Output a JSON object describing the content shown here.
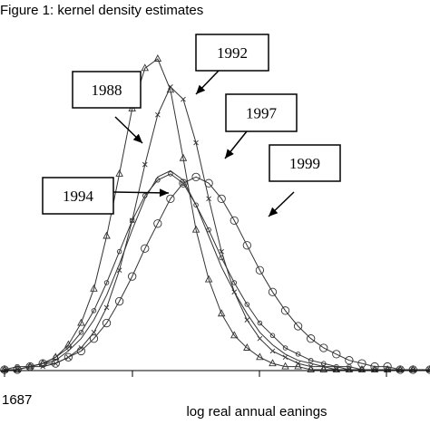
{
  "chart_data": {
    "type": "line",
    "title": "Figure 1: kernel density estimates",
    "xlabel": "log real annual eanings",
    "ylabel": "",
    "x_tick_label_first": "1687",
    "grid": false,
    "legend": "callout boxes with arrows",
    "series": [
      {
        "name": "1988",
        "marker": "triangle",
        "x": [
          0.0,
          0.03,
          0.06,
          0.09,
          0.12,
          0.15,
          0.18,
          0.21,
          0.24,
          0.27,
          0.3,
          0.33,
          0.36,
          0.39,
          0.42,
          0.45,
          0.48,
          0.51,
          0.54,
          0.57,
          0.6,
          0.63,
          0.66,
          0.69,
          0.72,
          0.75,
          0.78,
          0.81,
          0.84,
          0.87,
          0.9,
          0.93,
          0.96,
          1.0
        ],
        "y": [
          0.0,
          0.0,
          0.01,
          0.02,
          0.04,
          0.08,
          0.15,
          0.26,
          0.43,
          0.63,
          0.84,
          0.97,
          1.0,
          0.9,
          0.68,
          0.45,
          0.29,
          0.18,
          0.11,
          0.07,
          0.04,
          0.02,
          0.01,
          0.01,
          0.0,
          0.0,
          0.0,
          0.0,
          0.0,
          0.0,
          0.0,
          0.0,
          0.0,
          0.0
        ]
      },
      {
        "name": "1992",
        "marker": "x",
        "x": [
          0.0,
          0.03,
          0.06,
          0.09,
          0.12,
          0.15,
          0.18,
          0.21,
          0.24,
          0.27,
          0.3,
          0.33,
          0.36,
          0.39,
          0.42,
          0.45,
          0.48,
          0.51,
          0.54,
          0.57,
          0.6,
          0.63,
          0.66,
          0.69,
          0.72,
          0.75,
          0.78,
          0.81,
          0.84,
          0.87,
          0.9,
          0.93,
          0.96,
          1.0
        ],
        "y": [
          0.0,
          0.0,
          0.01,
          0.01,
          0.02,
          0.04,
          0.07,
          0.12,
          0.2,
          0.32,
          0.48,
          0.66,
          0.82,
          0.91,
          0.87,
          0.73,
          0.55,
          0.38,
          0.25,
          0.16,
          0.1,
          0.06,
          0.04,
          0.02,
          0.01,
          0.01,
          0.0,
          0.0,
          0.0,
          0.0,
          0.0,
          0.0,
          0.0,
          0.0
        ]
      },
      {
        "name": "1997",
        "marker": "circle-small",
        "x": [
          0.0,
          0.03,
          0.06,
          0.09,
          0.12,
          0.15,
          0.18,
          0.21,
          0.24,
          0.27,
          0.3,
          0.33,
          0.36,
          0.39,
          0.42,
          0.45,
          0.48,
          0.51,
          0.54,
          0.57,
          0.6,
          0.63,
          0.66,
          0.69,
          0.72,
          0.75,
          0.78,
          0.81,
          0.84,
          0.87,
          0.9,
          0.93,
          0.96,
          1.0
        ],
        "y": [
          0.0,
          0.01,
          0.01,
          0.02,
          0.04,
          0.07,
          0.12,
          0.19,
          0.28,
          0.38,
          0.48,
          0.56,
          0.61,
          0.63,
          0.6,
          0.53,
          0.45,
          0.36,
          0.28,
          0.21,
          0.15,
          0.11,
          0.07,
          0.05,
          0.03,
          0.02,
          0.01,
          0.01,
          0.0,
          0.0,
          0.0,
          0.0,
          0.0,
          0.0
        ]
      },
      {
        "name": "1994",
        "marker": "line",
        "x": [
          0.0,
          0.03,
          0.06,
          0.09,
          0.12,
          0.15,
          0.18,
          0.21,
          0.24,
          0.27,
          0.3,
          0.33,
          0.36,
          0.39,
          0.42,
          0.45,
          0.48,
          0.51,
          0.54,
          0.57,
          0.6,
          0.63,
          0.66,
          0.69,
          0.72,
          0.75,
          0.78,
          0.81,
          0.84,
          0.87,
          0.9,
          0.93,
          0.96,
          1.0
        ],
        "y": [
          0.0,
          0.0,
          0.01,
          0.02,
          0.03,
          0.06,
          0.1,
          0.16,
          0.24,
          0.34,
          0.45,
          0.55,
          0.62,
          0.64,
          0.61,
          0.53,
          0.43,
          0.33,
          0.25,
          0.18,
          0.12,
          0.08,
          0.05,
          0.03,
          0.02,
          0.01,
          0.01,
          0.0,
          0.0,
          0.0,
          0.0,
          0.0,
          0.0,
          0.0
        ]
      },
      {
        "name": "1999",
        "marker": "circle-large",
        "x": [
          0.0,
          0.03,
          0.06,
          0.09,
          0.12,
          0.15,
          0.18,
          0.21,
          0.24,
          0.27,
          0.3,
          0.33,
          0.36,
          0.39,
          0.42,
          0.45,
          0.48,
          0.51,
          0.54,
          0.57,
          0.6,
          0.63,
          0.66,
          0.69,
          0.72,
          0.75,
          0.78,
          0.81,
          0.84,
          0.87,
          0.9,
          0.93,
          0.96,
          1.0
        ],
        "y": [
          0.0,
          0.0,
          0.01,
          0.02,
          0.02,
          0.04,
          0.06,
          0.1,
          0.15,
          0.22,
          0.3,
          0.39,
          0.47,
          0.55,
          0.6,
          0.62,
          0.6,
          0.55,
          0.48,
          0.4,
          0.32,
          0.25,
          0.19,
          0.14,
          0.1,
          0.07,
          0.05,
          0.03,
          0.02,
          0.01,
          0.01,
          0.0,
          0.0,
          0.0
        ]
      }
    ],
    "callouts": [
      "1988",
      "1992",
      "1997",
      "1994",
      "1999"
    ]
  }
}
